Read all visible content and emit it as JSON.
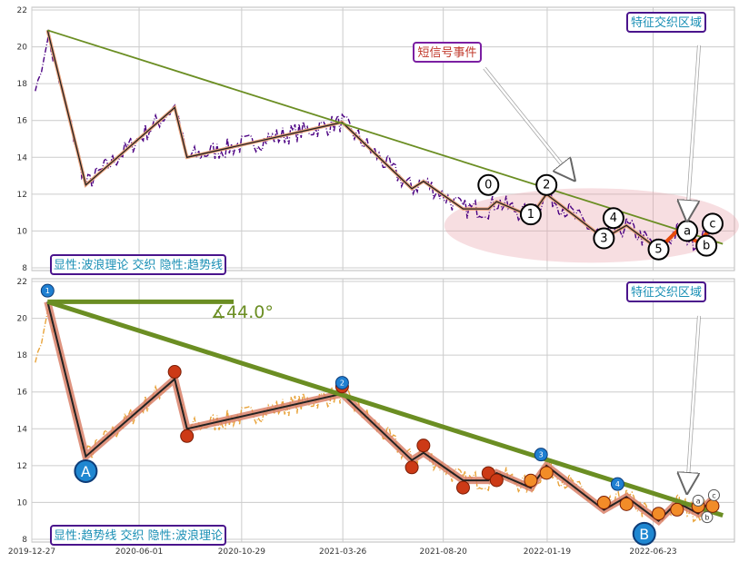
{
  "chart_data": [
    {
      "type": "line",
      "title": "",
      "x_range": [
        "2019-12-27",
        "2022-10-20"
      ],
      "ylim": [
        8,
        22
      ],
      "y_ticks": [
        8,
        10,
        12,
        14,
        16,
        18,
        20,
        22
      ],
      "grid": true,
      "annotations": {
        "short_signal": "短信号事件",
        "feature_zone": "特征交织区域",
        "legend_box": "显性:波浪理论 交织 隐性:趋势线"
      },
      "series": [
        {
          "name": "",
          "style": "price-dashdot-purple"
        },
        {
          "name": "",
          "style": "wave-line",
          "points": [
            [
              "2020-01-19",
              20.9
            ],
            [
              "2020-03-15",
              12.5
            ],
            [
              "2020-07-23",
              16.7
            ],
            [
              "2020-08-10",
              14.0
            ],
            [
              "2021-03-25",
              15.9
            ],
            [
              "2021-07-05",
              12.3
            ],
            [
              "2021-07-22",
              12.7
            ],
            [
              "2021-09-18",
              11.2
            ],
            [
              "2021-10-25",
              11.2
            ],
            [
              "2021-11-06",
              11.6
            ],
            [
              "2021-12-26",
              10.8
            ],
            [
              "2022-01-18",
              12.0
            ],
            [
              "2022-04-12",
              9.6
            ],
            [
              "2022-05-15",
              10.3
            ],
            [
              "2022-07-01",
              9.0
            ],
            [
              "2022-07-28",
              10.0
            ],
            [
              "2022-08-28",
              9.4
            ],
            [
              "2022-09-18",
              10.2
            ]
          ]
        },
        {
          "name": "",
          "style": "trend-green",
          "points": [
            [
              "2020-01-19",
              20.9
            ],
            [
              "2022-10-03",
              9.3
            ]
          ]
        }
      ],
      "wave_labels": [
        {
          "label": "0",
          "x": "2021-10-25",
          "y": 12.5
        },
        {
          "label": "1",
          "x": "2021-12-26",
          "y": 10.9
        },
        {
          "label": "2",
          "x": "2022-01-18",
          "y": 12.5
        },
        {
          "label": "3",
          "x": "2022-04-12",
          "y": 9.6
        },
        {
          "label": "4",
          "x": "2022-04-26",
          "y": 10.7
        },
        {
          "label": "5",
          "x": "2022-07-01",
          "y": 9.0
        },
        {
          "label": "a",
          "x": "2022-08-12",
          "y": 10.0
        },
        {
          "label": "b",
          "x": "2022-09-09",
          "y": 9.2
        },
        {
          "label": "c",
          "x": "2022-09-18",
          "y": 10.4
        }
      ]
    },
    {
      "type": "line",
      "title": "",
      "x_label_ticks": [
        "2019-12-27",
        "2020-06-01",
        "2020-10-29",
        "2021-03-26",
        "2021-08-20",
        "2022-01-19",
        "2022-06-23"
      ],
      "x_range": [
        "2019-12-27",
        "2022-10-20"
      ],
      "ylim": [
        8,
        22
      ],
      "y_ticks": [
        8,
        10,
        12,
        14,
        16,
        18,
        20,
        22
      ],
      "grid": true,
      "annotations": {
        "angle": "∡44.0°",
        "feature_zone": "特征交织区域",
        "legend_box": "显性:趋势线 交织 隐性:波浪理论",
        "wave_a": "A",
        "wave_b": "B"
      },
      "series": [
        {
          "name": "",
          "style": "price-dashdot-orange"
        },
        {
          "name": "",
          "style": "wave-line-thick"
        },
        {
          "name": "",
          "style": "trend-green-thick"
        }
      ]
    }
  ]
}
